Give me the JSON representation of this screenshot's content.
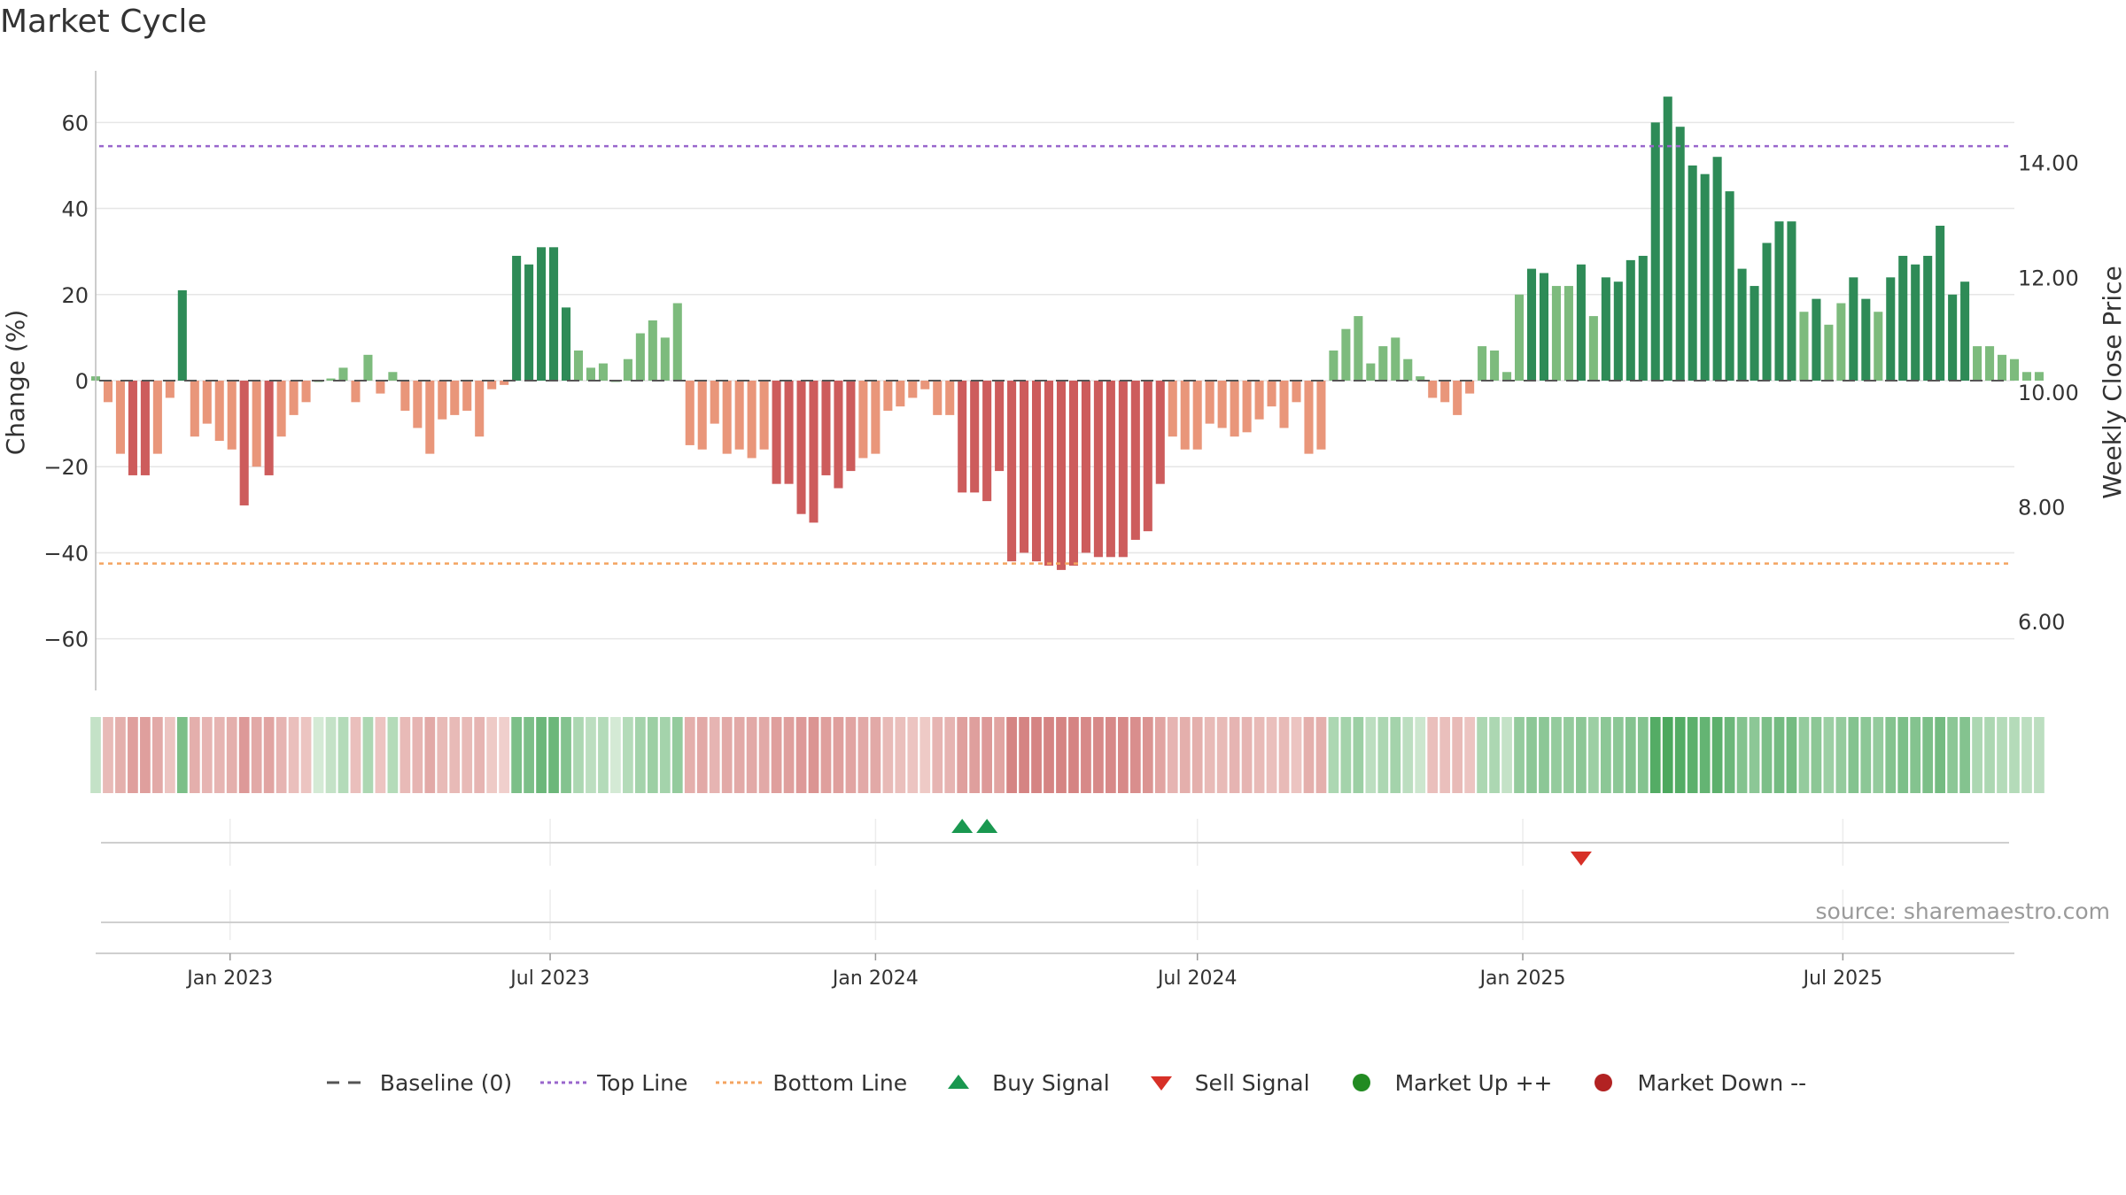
{
  "title": "Market Cycle",
  "source": "source: sharemaestro.com",
  "colors": {
    "up_strong": "#2e8b57",
    "up_light": "#7dbb7d",
    "down_strong": "#cd5c5c",
    "down_light": "#e9967a",
    "top_line": "#9966cc",
    "bottom_line": "#f4a460",
    "baseline": "#555555",
    "buy": "#1a9850",
    "sell": "#d73027",
    "market_up": "#228b22",
    "market_down": "#b22222"
  },
  "legend": {
    "baseline": "Baseline (0)",
    "top": "Top Line",
    "bottom": "Bottom Line",
    "buy": "Buy Signal",
    "sell": "Sell Signal",
    "up": "Market Up ++",
    "down": "Market Down --"
  },
  "chart_data": {
    "type": "bar",
    "title": "Market Cycle",
    "ylabel_left": "Change (%)",
    "ylabel_right": "Weekly Close Price",
    "ylim_left": [
      -72,
      72
    ],
    "yticks_left": [
      60,
      40,
      20,
      0,
      -20,
      -40,
      -60
    ],
    "ytick_labels_left": [
      "60",
      "40",
      "20",
      "0",
      "−20",
      "−40",
      "−60"
    ],
    "ylim_right": [
      4.8,
      15.6
    ],
    "yticks_right": [
      14,
      12,
      10,
      8,
      6
    ],
    "ytick_labels_right": [
      "14.00",
      "12.00",
      "10.00",
      "8.00",
      "6.00"
    ],
    "x_range": [
      "2022-10-17",
      "2025-10-06"
    ],
    "xticks": [
      {
        "label": "Jan 2023",
        "date": "2023-01-01"
      },
      {
        "label": "Jul 2023",
        "date": "2023-07-01"
      },
      {
        "label": "Jan 2024",
        "date": "2024-01-01"
      },
      {
        "label": "Jul 2024",
        "date": "2024-07-01"
      },
      {
        "label": "Jan 2025",
        "date": "2025-01-01"
      },
      {
        "label": "Jul 2025",
        "date": "2025-07-01"
      }
    ],
    "top_line": 54.5,
    "bottom_line": -42.5,
    "baseline": 0,
    "start_week": "2022-10-17",
    "week_step_days": 7,
    "values": [
      1,
      -5,
      -17,
      -22,
      -22,
      -17,
      -4,
      21,
      -13,
      -10,
      -14,
      -16,
      -29,
      -20,
      -22,
      -13,
      -8,
      -5,
      0,
      0.5,
      3,
      -5,
      6,
      -3,
      2,
      -7,
      -11,
      -17,
      -9,
      -8,
      -7,
      -13,
      -2,
      -1,
      29,
      27,
      31,
      31,
      17,
      7,
      3,
      4,
      0,
      5,
      11,
      14,
      10,
      18,
      -15,
      -16,
      -10,
      -17,
      -16,
      -18,
      -16,
      -24,
      -24,
      -31,
      -33,
      -22,
      -25,
      -21,
      -18,
      -17,
      -7,
      -6,
      -4,
      -2,
      -8,
      -8,
      -26,
      -26,
      -28,
      -21,
      -42,
      -40,
      -42,
      -43,
      -44,
      -43,
      -40,
      -41,
      -41,
      -41,
      -37,
      -35,
      -24,
      -13,
      -16,
      -16,
      -10,
      -11,
      -13,
      -12,
      -9,
      -6,
      -11,
      -5,
      -17,
      -16,
      7,
      12,
      15,
      4,
      8,
      10,
      5,
      1,
      -4,
      -5,
      -8,
      -3,
      8,
      7,
      2,
      20,
      26,
      25,
      22,
      22,
      27,
      15,
      24,
      23,
      28,
      29,
      60,
      66,
      59,
      50,
      48,
      52,
      44,
      26,
      22,
      32,
      37,
      37,
      16,
      19,
      13,
      18,
      24,
      19,
      16,
      24,
      29,
      27,
      29,
      36,
      20,
      23,
      8,
      8,
      6,
      5,
      2,
      2
    ],
    "strength": [
      0.15,
      0.3,
      0.4,
      0.55,
      0.55,
      0.45,
      0.2,
      0.6,
      0.4,
      0.35,
      0.35,
      0.4,
      0.6,
      0.45,
      0.5,
      0.35,
      0.25,
      0.2,
      0.05,
      0.15,
      0.25,
      0.25,
      0.3,
      0.2,
      0.25,
      0.3,
      0.35,
      0.45,
      0.3,
      0.3,
      0.3,
      0.35,
      0.15,
      0.1,
      0.6,
      0.6,
      0.7,
      0.7,
      0.55,
      0.3,
      0.2,
      0.25,
      0.05,
      0.25,
      0.35,
      0.4,
      0.35,
      0.45,
      0.4,
      0.45,
      0.35,
      0.45,
      0.45,
      0.45,
      0.45,
      0.55,
      0.55,
      0.6,
      0.65,
      0.55,
      0.55,
      0.5,
      0.45,
      0.45,
      0.3,
      0.25,
      0.2,
      0.15,
      0.35,
      0.35,
      0.55,
      0.55,
      0.6,
      0.5,
      0.8,
      0.8,
      0.8,
      0.8,
      0.8,
      0.8,
      0.75,
      0.75,
      0.75,
      0.75,
      0.7,
      0.65,
      0.5,
      0.35,
      0.4,
      0.4,
      0.3,
      0.3,
      0.35,
      0.35,
      0.3,
      0.25,
      0.3,
      0.2,
      0.4,
      0.4,
      0.3,
      0.35,
      0.4,
      0.2,
      0.3,
      0.35,
      0.2,
      0.1,
      0.25,
      0.25,
      0.3,
      0.2,
      0.3,
      0.3,
      0.15,
      0.45,
      0.5,
      0.5,
      0.45,
      0.45,
      0.5,
      0.4,
      0.5,
      0.5,
      0.55,
      0.55,
      0.85,
      0.9,
      0.85,
      0.8,
      0.75,
      0.8,
      0.7,
      0.55,
      0.5,
      0.6,
      0.65,
      0.65,
      0.45,
      0.5,
      0.4,
      0.45,
      0.55,
      0.5,
      0.45,
      0.55,
      0.6,
      0.55,
      0.6,
      0.65,
      0.5,
      0.55,
      0.3,
      0.3,
      0.25,
      0.25,
      0.2,
      0.2
    ],
    "buy_signals": [
      "2024-02-19",
      "2024-03-04"
    ],
    "sell_signals": [
      "2025-02-03"
    ]
  }
}
